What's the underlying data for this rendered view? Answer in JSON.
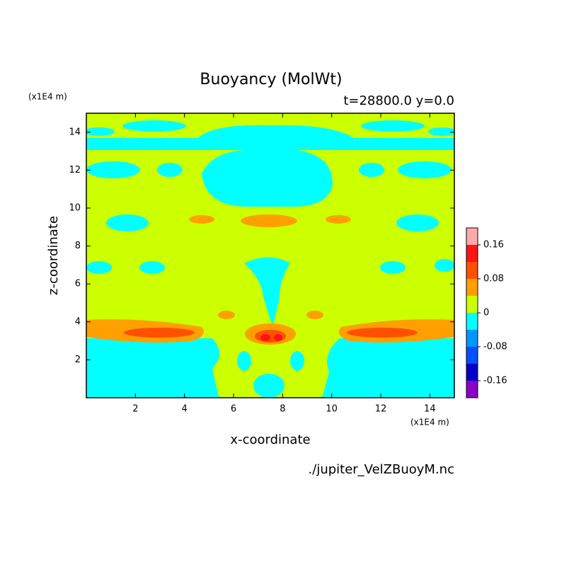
{
  "chart_data": {
    "type": "contour",
    "title": "Buoyancy (MolWt)",
    "subtitle": "t=28800.0 y=0.0",
    "x_label": "x-coordinate",
    "y_label": "z-coordinate",
    "x_unit": "(x1E4 m)",
    "y_unit": "(x1E4 m)",
    "footer": "./jupiter_VelZBuoyM.nc",
    "xlim": [
      0,
      15
    ],
    "ylim": [
      0,
      15
    ],
    "xticks": [
      2,
      4,
      6,
      8,
      10,
      12,
      14
    ],
    "yticks": [
      2,
      4,
      6,
      8,
      10,
      12,
      14
    ],
    "colorbar": {
      "levels": [
        -0.2,
        -0.16,
        -0.12,
        -0.08,
        -0.04,
        0,
        0.04,
        0.08,
        0.12,
        0.16,
        0.2
      ],
      "colors": [
        "#8b00c8",
        "#0000c8",
        "#0050ff",
        "#0096ff",
        "#00ffff",
        "#ccff00",
        "#ffa000",
        "#ff5000",
        "#ff1414",
        "#ffaaaa"
      ],
      "ticks": [
        -0.16,
        -0.08,
        0,
        0.08,
        0.16
      ]
    }
  }
}
